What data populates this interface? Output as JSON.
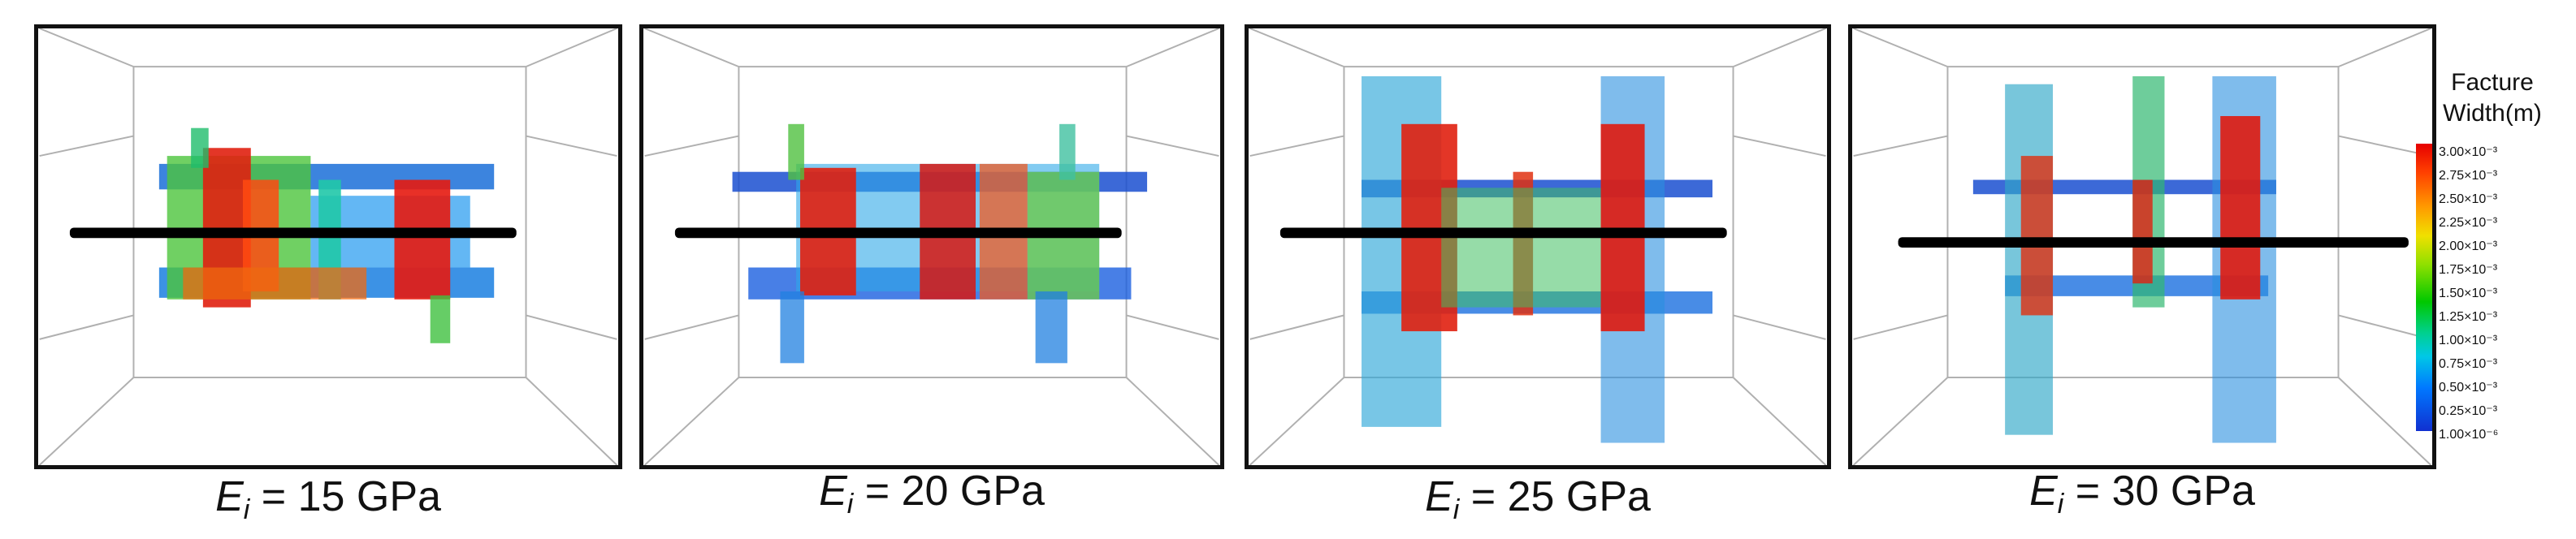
{
  "panels": [
    {
      "symbol": "E",
      "subscript": "i",
      "value": "= 15 GPa"
    },
    {
      "symbol": "E",
      "subscript": "i",
      "value": "= 20 GPa"
    },
    {
      "symbol": "E",
      "subscript": "i",
      "value": "= 25 GPa"
    },
    {
      "symbol": "E",
      "subscript": "i",
      "value": "= 30 GPa"
    }
  ],
  "legend": {
    "title_line1": "Facture",
    "title_line2": "Width(m)",
    "ticks": [
      "3.00×10⁻³",
      "2.75×10⁻³",
      "2.50×10⁻³",
      "2.25×10⁻³",
      "2.00×10⁻³",
      "1.75×10⁻³",
      "1.50×10⁻³",
      "1.25×10⁻³",
      "1.00×10⁻³",
      "0.75×10⁻³",
      "0.50×10⁻³",
      "0.25×10⁻³",
      "1.00×10⁻⁶"
    ]
  },
  "colors": {
    "frame": "#111111",
    "box_edges": "#b0b0b0",
    "wellbore": "#000000",
    "high": "#e60000",
    "mid": "#00c800",
    "low": "#1030d0"
  }
}
